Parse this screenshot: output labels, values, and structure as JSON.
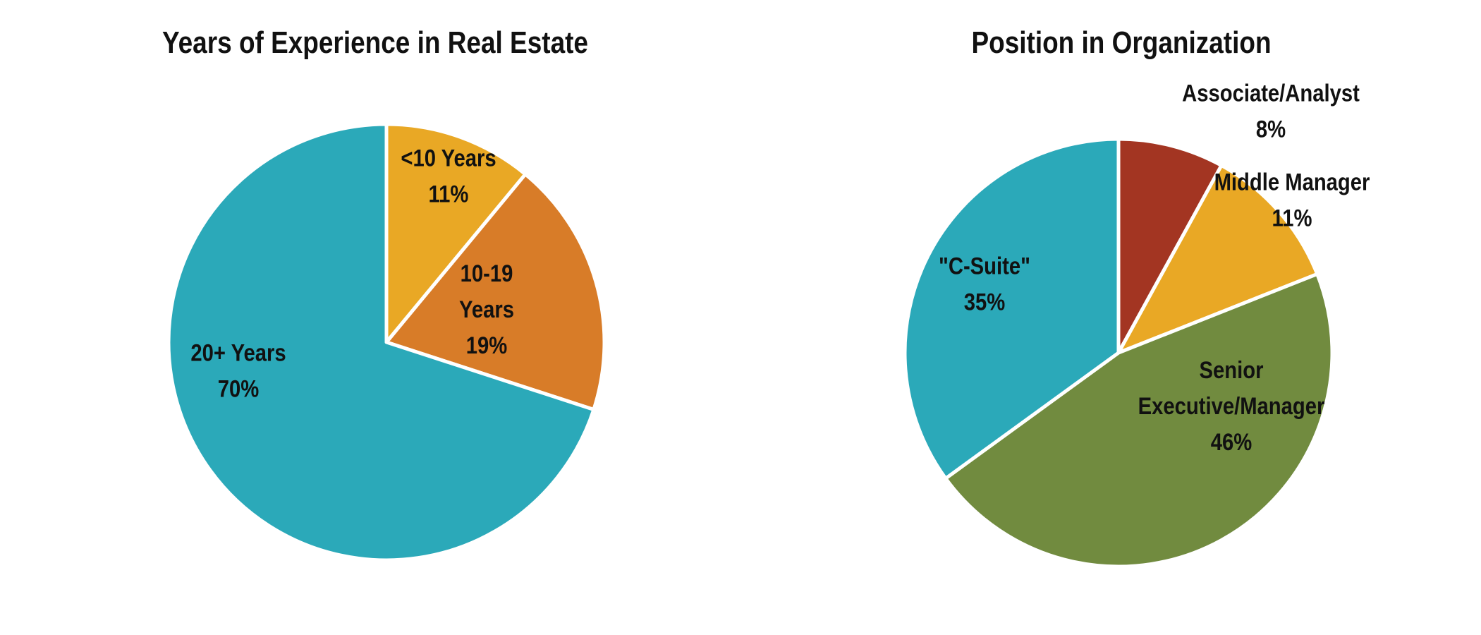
{
  "chart_data": [
    {
      "type": "pie",
      "title": "Years of Experience in Real Estate",
      "start": "12 o'clock",
      "direction": "clockwise",
      "slices": [
        {
          "label_lines": [
            "<10 Years"
          ],
          "value_text": "11%",
          "value": 11,
          "color": "#E9A825"
        },
        {
          "label_lines": [
            "10-19",
            "Years"
          ],
          "value_text": "19%",
          "value": 19,
          "color": "#D87C28"
        },
        {
          "label_lines": [
            "20+ Years"
          ],
          "value_text": "70%",
          "value": 70,
          "color": "#2BA9B9"
        }
      ]
    },
    {
      "type": "pie",
      "title": "Position in Organization",
      "start": "12 o'clock",
      "direction": "clockwise",
      "slices": [
        {
          "label_lines": [
            "Associate/Analyst"
          ],
          "value_text": "8%",
          "value": 8,
          "color": "#A33522"
        },
        {
          "label_lines": [
            "Middle Manager"
          ],
          "value_text": "11%",
          "value": 11,
          "color": "#E9A825"
        },
        {
          "label_lines": [
            "Senior",
            "Executive/Manager"
          ],
          "value_text": "46%",
          "value": 46,
          "color": "#718B3F"
        },
        {
          "label_lines": [
            "\"C-Suite\""
          ],
          "value_text": "35%",
          "value": 35,
          "color": "#2BA9B9"
        }
      ]
    }
  ]
}
